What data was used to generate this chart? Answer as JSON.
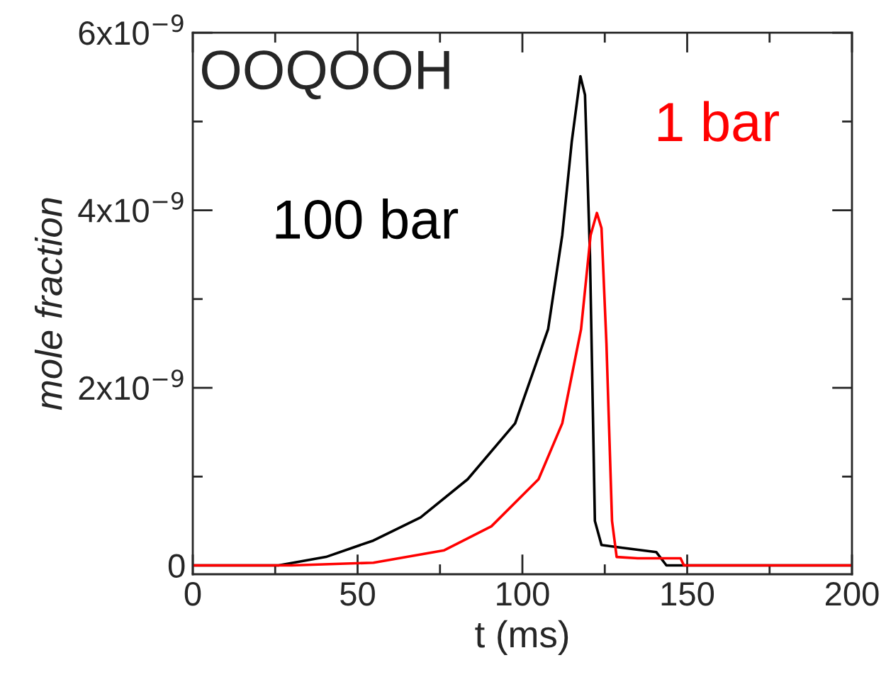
{
  "chart_data": {
    "type": "line",
    "xlabel": "t (ms)",
    "ylabel": "mole fraction",
    "annotations": [
      "OOQOOH"
    ],
    "xlim": [
      0,
      200
    ],
    "xticks": [
      0,
      50,
      100,
      150,
      200
    ],
    "ylim": [
      -1e-10,
      6e-09
    ],
    "yticks": [
      {
        "value": 0,
        "label": "0"
      },
      {
        "value": 2e-09,
        "label": "2x10$^{−9}$"
      },
      {
        "value": 4e-09,
        "label": "4x10$^{−9}$"
      },
      {
        "value": 6e-09,
        "label": "6x10$^{−9}$"
      }
    ],
    "grid": false,
    "legend": false,
    "marker": "none",
    "line_style": "solid",
    "series": [
      {
        "name": "100 bar",
        "color": "#000000",
        "x": [
          0,
          20,
          26,
          40.4,
          54.8,
          69.1,
          83.4,
          97.8,
          107.8,
          112.1,
          115,
          117.6,
          119,
          120.5,
          122,
          124,
          130,
          140.6,
          143.7,
          150,
          200
        ],
        "values": [
          0,
          0,
          0,
          9.5e-11,
          2.8e-10,
          5.4e-10,
          9.7e-10,
          1.6e-09,
          2.66e-09,
          3.72e-09,
          4.78e-09,
          5.51e-09,
          5.3e-09,
          3.5e-09,
          5e-10,
          2.3e-10,
          2e-10,
          1.5e-10,
          0,
          0,
          0
        ]
      },
      {
        "name": "1 bar",
        "color": "#ff0000",
        "x": [
          0,
          30,
          54.8,
          76.3,
          90.6,
          104.9,
          112.1,
          117.8,
          120.7,
          122.6,
          124,
          125.5,
          127.2,
          128.6,
          135,
          148,
          149,
          200
        ],
        "values": [
          0,
          0,
          3e-11,
          1.7e-10,
          4.4e-10,
          9.7e-10,
          1.6e-09,
          2.66e-09,
          3.72e-09,
          3.97e-09,
          3.8e-09,
          2.5e-09,
          5e-10,
          9.5e-11,
          8e-11,
          8e-11,
          0,
          0
        ]
      }
    ]
  }
}
